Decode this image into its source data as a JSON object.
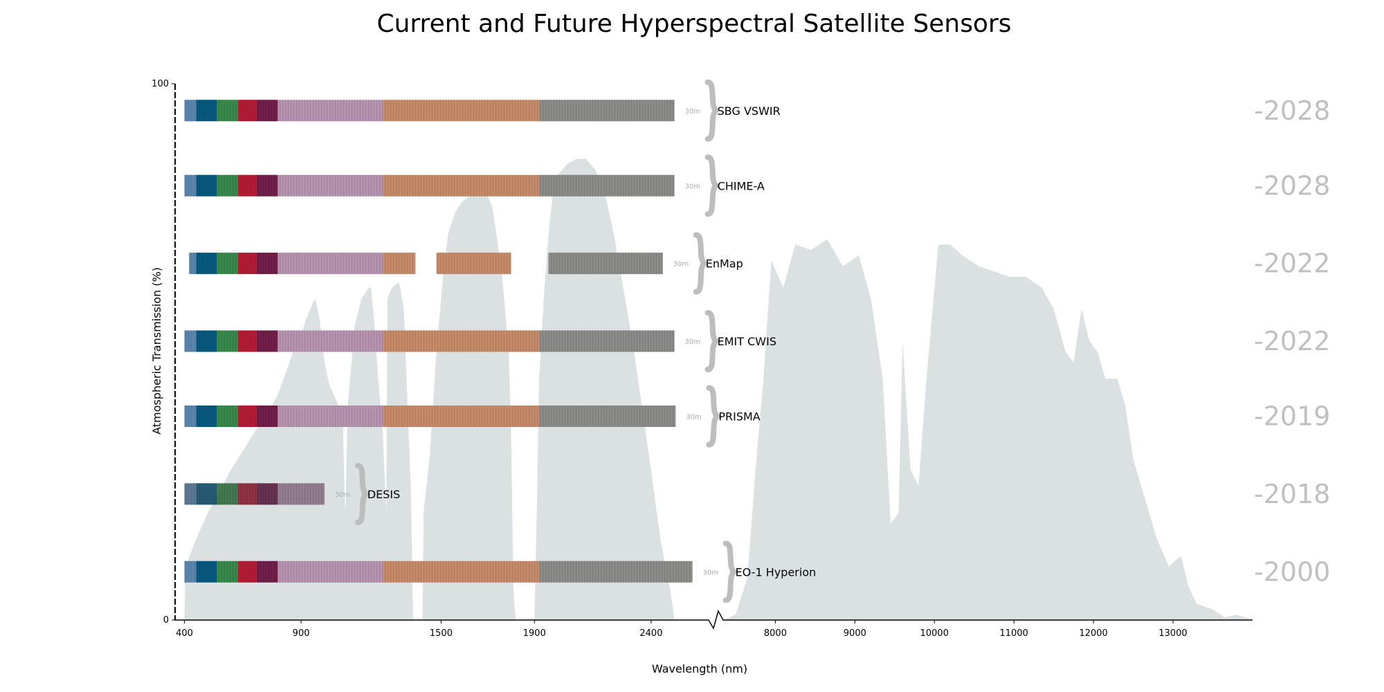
{
  "chart_data": {
    "type": "bar",
    "title": "Current and Future Hyperspectral Satellite Sensors",
    "xlabel": "Wavelength (nm)",
    "ylabel": "Atmospheric Transmission (%)",
    "ylim": [
      0,
      100
    ],
    "y_ticks": [
      "0",
      "100"
    ],
    "x_ticks_left": [
      {
        "value": 400,
        "label": "400"
      },
      {
        "value": 900,
        "label": "900"
      },
      {
        "value": 1500,
        "label": "1500"
      },
      {
        "value": 1900,
        "label": "1900"
      },
      {
        "value": 2400,
        "label": "2400"
      }
    ],
    "x_ticks_right": [
      {
        "value": 8000,
        "label": "8000"
      },
      {
        "value": 9000,
        "label": "9000"
      },
      {
        "value": 10000,
        "label": "10000"
      },
      {
        "value": 11000,
        "label": "11000"
      },
      {
        "value": 12000,
        "label": "12000"
      },
      {
        "value": 13000,
        "label": "13000"
      }
    ],
    "x_range_left": [
      360,
      2590
    ],
    "x_range_right": [
      7300,
      14000
    ],
    "band_colors": [
      {
        "name": "violet",
        "range": [
          400,
          450
        ],
        "color": "#5b86ae"
      },
      {
        "name": "blue",
        "range": [
          450,
          540
        ],
        "color": "#045a80"
      },
      {
        "name": "green",
        "range": [
          540,
          630
        ],
        "color": "#378b4a"
      },
      {
        "name": "red",
        "range": [
          630,
          710
        ],
        "color": "#b51b34"
      },
      {
        "name": "red-edge",
        "range": [
          710,
          800
        ],
        "color": "#721d4a"
      },
      {
        "name": "nir",
        "range": [
          800,
          1250
        ],
        "color": "#b893b2"
      },
      {
        "name": "swir1",
        "range": [
          1250,
          1920
        ],
        "color": "#c88b6a"
      },
      {
        "name": "swir2",
        "range": [
          1920,
          2600
        ],
        "color": "#8c8c88"
      }
    ],
    "series": [
      {
        "name": "SBG VSWIR",
        "year": "-2028",
        "resolution": "30m",
        "transmission_level": 95,
        "ranges": [
          [
            400,
            2500
          ]
        ]
      },
      {
        "name": "CHIME-A",
        "year": "-2028",
        "resolution": "30m",
        "transmission_level": 81,
        "ranges": [
          [
            400,
            2500
          ]
        ]
      },
      {
        "name": "EnMap",
        "year": "-2022",
        "resolution": "30m",
        "transmission_level": 66.5,
        "ranges": [
          [
            420,
            1390
          ],
          [
            1480,
            1800
          ],
          [
            1960,
            2450
          ]
        ]
      },
      {
        "name": "EMIT CWIS",
        "year": "-2022",
        "resolution": "30m",
        "transmission_level": 52,
        "ranges": [
          [
            380,
            2500
          ]
        ]
      },
      {
        "name": "PRISMA",
        "year": "-2019",
        "resolution": "30m",
        "transmission_level": 38,
        "ranges": [
          [
            400,
            2505
          ]
        ]
      },
      {
        "name": "DESIS",
        "year": "-2018",
        "resolution": "30m",
        "transmission_level": 23.5,
        "ranges": [
          [
            400,
            1000
          ]
        ],
        "dark": true
      },
      {
        "name": "EO-1 Hyperion",
        "year": "-2000",
        "resolution": "30m",
        "transmission_level": 9,
        "ranges": [
          [
            357,
            2577
          ]
        ]
      }
    ],
    "transmission_left": [
      [
        400,
        0
      ],
      [
        405,
        10
      ],
      [
        440,
        14
      ],
      [
        500,
        20
      ],
      [
        600,
        28
      ],
      [
        700,
        35
      ],
      [
        750,
        38
      ],
      [
        800,
        42
      ],
      [
        850,
        48
      ],
      [
        880,
        52
      ],
      [
        900,
        53
      ],
      [
        920,
        56
      ],
      [
        940,
        58
      ],
      [
        960,
        60
      ],
      [
        980,
        56
      ],
      [
        1000,
        48
      ],
      [
        1020,
        44
      ],
      [
        1060,
        40
      ],
      [
        1080,
        36
      ],
      [
        1085,
        25
      ],
      [
        1090,
        20
      ],
      [
        1100,
        40
      ],
      [
        1130,
        55
      ],
      [
        1160,
        60
      ],
      [
        1190,
        62
      ],
      [
        1200,
        62
      ],
      [
        1215,
        55
      ],
      [
        1230,
        45
      ],
      [
        1250,
        35
      ],
      [
        1265,
        20
      ],
      [
        1270,
        60
      ],
      [
        1290,
        62
      ],
      [
        1320,
        63
      ],
      [
        1340,
        58
      ],
      [
        1370,
        25
      ],
      [
        1380,
        0
      ],
      [
        1420,
        0
      ],
      [
        1425,
        20
      ],
      [
        1450,
        30
      ],
      [
        1480,
        50
      ],
      [
        1510,
        65
      ],
      [
        1530,
        72
      ],
      [
        1560,
        76
      ],
      [
        1590,
        78
      ],
      [
        1620,
        79
      ],
      [
        1650,
        80
      ],
      [
        1690,
        80
      ],
      [
        1720,
        77
      ],
      [
        1760,
        65
      ],
      [
        1790,
        50
      ],
      [
        1800,
        35
      ],
      [
        1810,
        5
      ],
      [
        1820,
        0
      ],
      [
        1900,
        0
      ],
      [
        1910,
        20
      ],
      [
        1920,
        45
      ],
      [
        1940,
        60
      ],
      [
        1960,
        72
      ],
      [
        1980,
        80
      ],
      [
        2000,
        83
      ],
      [
        2040,
        85
      ],
      [
        2080,
        86
      ],
      [
        2120,
        86
      ],
      [
        2160,
        84
      ],
      [
        2200,
        80
      ],
      [
        2240,
        72
      ],
      [
        2280,
        62
      ],
      [
        2320,
        52
      ],
      [
        2360,
        40
      ],
      [
        2400,
        28
      ],
      [
        2440,
        15
      ],
      [
        2480,
        6
      ],
      [
        2500,
        0
      ]
    ],
    "transmission_right": [
      [
        7350,
        0
      ],
      [
        7500,
        1
      ],
      [
        7650,
        8
      ],
      [
        7750,
        28
      ],
      [
        7850,
        45
      ],
      [
        7950,
        67
      ],
      [
        8100,
        62
      ],
      [
        8250,
        70
      ],
      [
        8450,
        69
      ],
      [
        8650,
        71
      ],
      [
        8850,
        66
      ],
      [
        9050,
        68
      ],
      [
        9200,
        60
      ],
      [
        9350,
        45
      ],
      [
        9450,
        18
      ],
      [
        9550,
        20
      ],
      [
        9600,
        52
      ],
      [
        9700,
        28
      ],
      [
        9800,
        25
      ],
      [
        9900,
        45
      ],
      [
        10050,
        70
      ],
      [
        10200,
        70
      ],
      [
        10350,
        68
      ],
      [
        10550,
        66
      ],
      [
        10750,
        65
      ],
      [
        10950,
        64
      ],
      [
        11150,
        64
      ],
      [
        11350,
        62
      ],
      [
        11500,
        58
      ],
      [
        11650,
        50
      ],
      [
        11750,
        48
      ],
      [
        11850,
        58
      ],
      [
        11950,
        52
      ],
      [
        12050,
        50
      ],
      [
        12150,
        45
      ],
      [
        12300,
        45
      ],
      [
        12400,
        40
      ],
      [
        12500,
        30
      ],
      [
        12600,
        25
      ],
      [
        12700,
        20
      ],
      [
        12800,
        15
      ],
      [
        12950,
        10
      ],
      [
        13100,
        12
      ],
      [
        13200,
        6
      ],
      [
        13300,
        3
      ],
      [
        13500,
        2
      ],
      [
        13650,
        0.5
      ],
      [
        13800,
        1
      ],
      [
        13950,
        0.3
      ]
    ]
  }
}
